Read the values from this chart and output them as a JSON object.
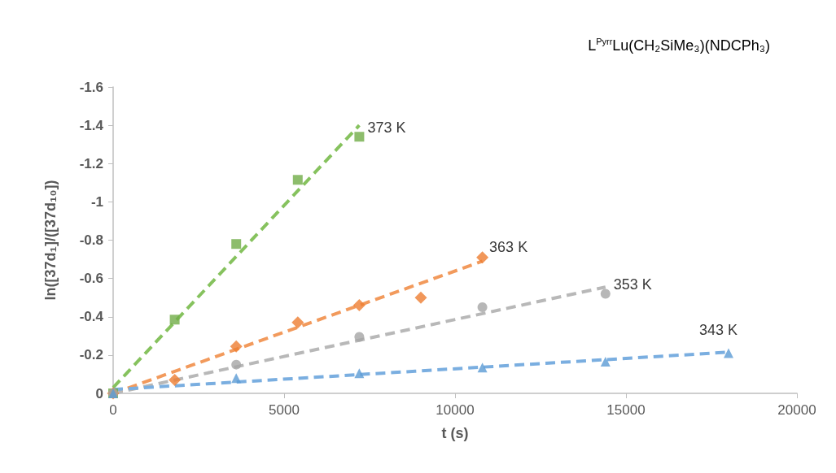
{
  "chart_data": {
    "type": "scatter",
    "title": "L$^{Pyrr}$Lu(CH₂SiMe₃)(NDCPh₃)",
    "xlabel": "t (s)",
    "ylabel": "ln([37d₁]/([37d₁₀])",
    "xlim": [
      0,
      20000
    ],
    "xticks": [
      0,
      5000,
      10000,
      15000,
      20000
    ],
    "ylim": [
      0,
      -1.6
    ],
    "yticks": [
      0,
      -0.2,
      -0.4,
      -0.6,
      -0.8,
      -1,
      -1.2,
      -1.4,
      -1.6
    ],
    "grid": false,
    "legend": false,
    "line_style": "dashed",
    "series": [
      {
        "name": "373 K",
        "marker": "square",
        "color": "#70ad47",
        "x": [
          0,
          1800,
          3600,
          5400,
          7200
        ],
        "values": [
          0,
          -0.385,
          -0.78,
          -1.115,
          -1.34
        ]
      },
      {
        "name": "363 K",
        "marker": "diamond",
        "color": "#ed7d31",
        "x": [
          0,
          1800,
          3600,
          5400,
          7200,
          9000,
          10800
        ],
        "values": [
          0,
          -0.07,
          -0.245,
          -0.37,
          -0.46,
          -0.5,
          -0.71
        ]
      },
      {
        "name": "353 K",
        "marker": "circle",
        "color": "#a5a5a5",
        "x": [
          0,
          3600,
          7200,
          10800,
          14400
        ],
        "values": [
          0,
          -0.15,
          -0.295,
          -0.45,
          -0.52
        ]
      },
      {
        "name": "343 K",
        "marker": "triangle",
        "color": "#5b9bd5",
        "x": [
          0,
          3600,
          7200,
          10800,
          14400,
          18000
        ],
        "values": [
          0,
          -0.08,
          -0.105,
          -0.135,
          -0.165,
          -0.21
        ]
      },
      {
        "type": "line",
        "color": "#86c25e",
        "x": [
          0,
          7200
        ],
        "values": [
          -0.03,
          -1.4
        ]
      },
      {
        "type": "line",
        "color": "#f29a5c",
        "x": [
          0,
          10800
        ],
        "values": [
          0,
          -0.69
        ]
      },
      {
        "type": "line",
        "color": "#b8b8b8",
        "x": [
          0,
          14400
        ],
        "values": [
          0,
          -0.555
        ]
      },
      {
        "type": "line",
        "color": "#7aaee0",
        "x": [
          0,
          18000
        ],
        "values": [
          -0.02,
          -0.215
        ]
      }
    ]
  }
}
